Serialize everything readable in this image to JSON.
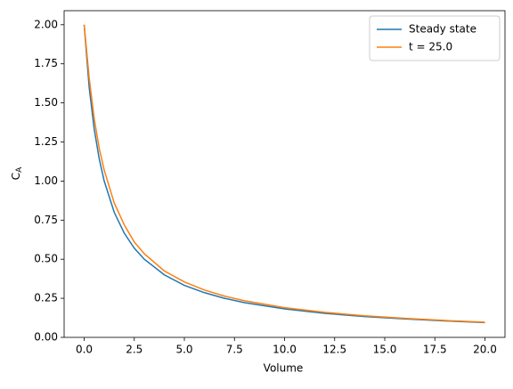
{
  "chart_data": {
    "type": "line",
    "xlabel": "Volume",
    "ylabel": {
      "main": "C",
      "sub": "A"
    },
    "x": [
      0,
      0.25,
      0.5,
      0.75,
      1,
      1.5,
      2,
      2.5,
      3,
      4,
      5,
      6,
      7,
      8,
      10,
      12,
      14,
      16,
      18,
      20
    ],
    "series": [
      {
        "name": "Steady state",
        "color": "#1f77b4",
        "values": [
          2.0,
          1.6,
          1.333,
          1.143,
          1.0,
          0.8,
          0.667,
          0.571,
          0.5,
          0.4,
          0.333,
          0.286,
          0.25,
          0.222,
          0.182,
          0.154,
          0.133,
          0.118,
          0.105,
          0.095
        ]
      },
      {
        "name": "t = 25.0",
        "color": "#ff7f0e",
        "values": [
          2.0,
          1.66,
          1.4,
          1.21,
          1.07,
          0.86,
          0.72,
          0.61,
          0.535,
          0.425,
          0.355,
          0.303,
          0.264,
          0.234,
          0.19,
          0.16,
          0.138,
          0.122,
          0.108,
          0.097
        ]
      }
    ],
    "xlim": [
      -1,
      21
    ],
    "ylim": [
      0,
      2.09
    ],
    "xticks": [
      {
        "value": 0,
        "label": "0.0"
      },
      {
        "value": 2.5,
        "label": "2.5"
      },
      {
        "value": 5,
        "label": "5.0"
      },
      {
        "value": 7.5,
        "label": "7.5"
      },
      {
        "value": 10,
        "label": "10.0"
      },
      {
        "value": 12.5,
        "label": "12.5"
      },
      {
        "value": 15,
        "label": "15.0"
      },
      {
        "value": 17.5,
        "label": "17.5"
      },
      {
        "value": 20,
        "label": "20.0"
      }
    ],
    "yticks": [
      {
        "value": 0,
        "label": "0.00"
      },
      {
        "value": 0.25,
        "label": "0.25"
      },
      {
        "value": 0.5,
        "label": "0.50"
      },
      {
        "value": 0.75,
        "label": "0.75"
      },
      {
        "value": 1,
        "label": "1.00"
      },
      {
        "value": 1.25,
        "label": "1.25"
      },
      {
        "value": 1.5,
        "label": "1.50"
      },
      {
        "value": 1.75,
        "label": "1.75"
      },
      {
        "value": 2,
        "label": "2.00"
      }
    ],
    "legend": "upper right",
    "grid": false
  }
}
